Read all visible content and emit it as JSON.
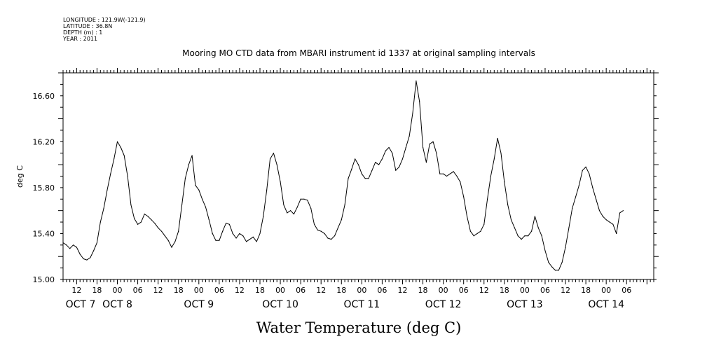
{
  "header": {
    "longitude": "LONGITUDE : 121.9W(-121.9)",
    "latitude": "LATITUDE : 36.8N",
    "depth": "DEPTH (m) : 1",
    "year": "YEAR : 2011",
    "title": "Mooring MO CTD data from MBARI instrument id 1337 at original sampling intervals"
  },
  "chart_data": {
    "type": "line",
    "title": "Mooring MO CTD data from MBARI instrument id 1337 at original sampling intervals",
    "xlabel": "Water Temperature (deg C)",
    "ylabel": "deg C",
    "ylim": [
      15.0,
      16.8
    ],
    "xlim": [
      "2011-10-07T08:00",
      "2011-10-14T14:00"
    ],
    "y_ticks": [
      "15.00",
      "15.40",
      "15.80",
      "16.20",
      "16.60"
    ],
    "x_hour_ticks": [
      {
        "t": "2011-10-07T12:00",
        "label": "12"
      },
      {
        "t": "2011-10-07T18:00",
        "label": "18"
      },
      {
        "t": "2011-10-08T00:00",
        "label": "00"
      },
      {
        "t": "2011-10-08T06:00",
        "label": "06"
      },
      {
        "t": "2011-10-08T12:00",
        "label": "12"
      },
      {
        "t": "2011-10-08T18:00",
        "label": "18"
      },
      {
        "t": "2011-10-09T00:00",
        "label": "00"
      },
      {
        "t": "2011-10-09T06:00",
        "label": "06"
      },
      {
        "t": "2011-10-09T12:00",
        "label": "12"
      },
      {
        "t": "2011-10-09T18:00",
        "label": "18"
      },
      {
        "t": "2011-10-10T00:00",
        "label": "00"
      },
      {
        "t": "2011-10-10T06:00",
        "label": "06"
      },
      {
        "t": "2011-10-10T12:00",
        "label": "12"
      },
      {
        "t": "2011-10-10T18:00",
        "label": "18"
      },
      {
        "t": "2011-10-11T00:00",
        "label": "00"
      },
      {
        "t": "2011-10-11T06:00",
        "label": "06"
      },
      {
        "t": "2011-10-11T12:00",
        "label": "12"
      },
      {
        "t": "2011-10-11T18:00",
        "label": "18"
      },
      {
        "t": "2011-10-12T00:00",
        "label": "00"
      },
      {
        "t": "2011-10-12T06:00",
        "label": "06"
      },
      {
        "t": "2011-10-12T12:00",
        "label": "12"
      },
      {
        "t": "2011-10-12T18:00",
        "label": "18"
      },
      {
        "t": "2011-10-13T00:00",
        "label": "00"
      },
      {
        "t": "2011-10-13T06:00",
        "label": "06"
      },
      {
        "t": "2011-10-13T12:00",
        "label": "12"
      },
      {
        "t": "2011-10-13T18:00",
        "label": "18"
      },
      {
        "t": "2011-10-14T00:00",
        "label": "00"
      },
      {
        "t": "2011-10-14T06:00",
        "label": "06"
      }
    ],
    "x_day_labels": [
      {
        "t": "2011-10-07T00:00",
        "label": "OCT  7"
      },
      {
        "t": "2011-10-08T00:00",
        "label": "OCT  8"
      },
      {
        "t": "2011-10-09T00:00",
        "label": "OCT  9"
      },
      {
        "t": "2011-10-10T00:00",
        "label": "OCT 10"
      },
      {
        "t": "2011-10-11T00:00",
        "label": "OCT 11"
      },
      {
        "t": "2011-10-12T00:00",
        "label": "OCT 12"
      },
      {
        "t": "2011-10-13T00:00",
        "label": "OCT 13"
      },
      {
        "t": "2011-10-14T00:00",
        "label": "OCT 14"
      }
    ],
    "grid": false,
    "series": [
      {
        "color": "#000000",
        "points": [
          [
            "2011-10-07T08:00",
            15.32
          ],
          [
            "2011-10-07T09:00",
            15.3
          ],
          [
            "2011-10-07T10:00",
            15.27
          ],
          [
            "2011-10-07T11:00",
            15.3
          ],
          [
            "2011-10-07T12:00",
            15.28
          ],
          [
            "2011-10-07T13:00",
            15.22
          ],
          [
            "2011-10-07T14:00",
            15.18
          ],
          [
            "2011-10-07T15:00",
            15.17
          ],
          [
            "2011-10-07T16:00",
            15.19
          ],
          [
            "2011-10-07T17:00",
            15.25
          ],
          [
            "2011-10-07T18:00",
            15.32
          ],
          [
            "2011-10-07T19:00",
            15.5
          ],
          [
            "2011-10-07T20:00",
            15.62
          ],
          [
            "2011-10-07T21:00",
            15.78
          ],
          [
            "2011-10-07T22:00",
            15.92
          ],
          [
            "2011-10-07T23:00",
            16.05
          ],
          [
            "2011-10-08T00:00",
            16.2
          ],
          [
            "2011-10-08T01:00",
            16.15
          ],
          [
            "2011-10-08T02:00",
            16.08
          ],
          [
            "2011-10-08T03:00",
            15.9
          ],
          [
            "2011-10-08T04:00",
            15.65
          ],
          [
            "2011-10-08T05:00",
            15.53
          ],
          [
            "2011-10-08T06:00",
            15.48
          ],
          [
            "2011-10-08T07:00",
            15.5
          ],
          [
            "2011-10-08T08:00",
            15.57
          ],
          [
            "2011-10-08T09:00",
            15.55
          ],
          [
            "2011-10-08T10:00",
            15.52
          ],
          [
            "2011-10-08T11:00",
            15.49
          ],
          [
            "2011-10-08T12:00",
            15.45
          ],
          [
            "2011-10-08T13:00",
            15.42
          ],
          [
            "2011-10-08T14:00",
            15.38
          ],
          [
            "2011-10-08T15:00",
            15.34
          ],
          [
            "2011-10-08T16:00",
            15.28
          ],
          [
            "2011-10-08T17:00",
            15.33
          ],
          [
            "2011-10-08T18:00",
            15.42
          ],
          [
            "2011-10-08T19:00",
            15.65
          ],
          [
            "2011-10-08T20:00",
            15.88
          ],
          [
            "2011-10-08T21:00",
            16.0
          ],
          [
            "2011-10-08T22:00",
            16.08
          ],
          [
            "2011-10-08T23:00",
            15.82
          ],
          [
            "2011-10-09T00:00",
            15.78
          ],
          [
            "2011-10-09T01:00",
            15.7
          ],
          [
            "2011-10-09T02:00",
            15.63
          ],
          [
            "2011-10-09T03:00",
            15.52
          ],
          [
            "2011-10-09T04:00",
            15.4
          ],
          [
            "2011-10-09T05:00",
            15.34
          ],
          [
            "2011-10-09T06:00",
            15.34
          ],
          [
            "2011-10-09T07:00",
            15.42
          ],
          [
            "2011-10-09T08:00",
            15.49
          ],
          [
            "2011-10-09T09:00",
            15.48
          ],
          [
            "2011-10-09T10:00",
            15.4
          ],
          [
            "2011-10-09T11:00",
            15.36
          ],
          [
            "2011-10-09T12:00",
            15.4
          ],
          [
            "2011-10-09T13:00",
            15.38
          ],
          [
            "2011-10-09T14:00",
            15.33
          ],
          [
            "2011-10-09T15:00",
            15.35
          ],
          [
            "2011-10-09T16:00",
            15.37
          ],
          [
            "2011-10-09T17:00",
            15.33
          ],
          [
            "2011-10-09T18:00",
            15.4
          ],
          [
            "2011-10-09T19:00",
            15.55
          ],
          [
            "2011-10-09T20:00",
            15.78
          ],
          [
            "2011-10-09T21:00",
            16.05
          ],
          [
            "2011-10-09T22:00",
            16.1
          ],
          [
            "2011-10-09T23:00",
            16.0
          ],
          [
            "2011-10-10T00:00",
            15.85
          ],
          [
            "2011-10-10T01:00",
            15.65
          ],
          [
            "2011-10-10T02:00",
            15.58
          ],
          [
            "2011-10-10T03:00",
            15.6
          ],
          [
            "2011-10-10T04:00",
            15.57
          ],
          [
            "2011-10-10T05:00",
            15.63
          ],
          [
            "2011-10-10T06:00",
            15.7
          ],
          [
            "2011-10-10T07:00",
            15.7
          ],
          [
            "2011-10-10T08:00",
            15.69
          ],
          [
            "2011-10-10T09:00",
            15.62
          ],
          [
            "2011-10-10T10:00",
            15.48
          ],
          [
            "2011-10-10T11:00",
            15.43
          ],
          [
            "2011-10-10T12:00",
            15.42
          ],
          [
            "2011-10-10T13:00",
            15.4
          ],
          [
            "2011-10-10T14:00",
            15.36
          ],
          [
            "2011-10-10T15:00",
            15.35
          ],
          [
            "2011-10-10T16:00",
            15.38
          ],
          [
            "2011-10-10T17:00",
            15.45
          ],
          [
            "2011-10-10T18:00",
            15.52
          ],
          [
            "2011-10-10T19:00",
            15.65
          ],
          [
            "2011-10-10T20:00",
            15.88
          ],
          [
            "2011-10-10T21:00",
            15.96
          ],
          [
            "2011-10-10T22:00",
            16.05
          ],
          [
            "2011-10-10T23:00",
            16.0
          ],
          [
            "2011-10-11T00:00",
            15.92
          ],
          [
            "2011-10-11T01:00",
            15.88
          ],
          [
            "2011-10-11T02:00",
            15.88
          ],
          [
            "2011-10-11T03:00",
            15.95
          ],
          [
            "2011-10-11T04:00",
            16.02
          ],
          [
            "2011-10-11T05:00",
            16.0
          ],
          [
            "2011-10-11T06:00",
            16.05
          ],
          [
            "2011-10-11T07:00",
            16.12
          ],
          [
            "2011-10-11T08:00",
            16.15
          ],
          [
            "2011-10-11T09:00",
            16.1
          ],
          [
            "2011-10-11T10:00",
            15.95
          ],
          [
            "2011-10-11T11:00",
            15.98
          ],
          [
            "2011-10-11T12:00",
            16.05
          ],
          [
            "2011-10-11T13:00",
            16.15
          ],
          [
            "2011-10-11T14:00",
            16.25
          ],
          [
            "2011-10-11T15:00",
            16.45
          ],
          [
            "2011-10-11T16:00",
            16.73
          ],
          [
            "2011-10-11T17:00",
            16.55
          ],
          [
            "2011-10-11T18:00",
            16.15
          ],
          [
            "2011-10-11T19:00",
            16.02
          ],
          [
            "2011-10-11T20:00",
            16.18
          ],
          [
            "2011-10-11T21:00",
            16.2
          ],
          [
            "2011-10-11T22:00",
            16.1
          ],
          [
            "2011-10-11T23:00",
            15.92
          ],
          [
            "2011-10-12T00:00",
            15.92
          ],
          [
            "2011-10-12T01:00",
            15.9
          ],
          [
            "2011-10-12T02:00",
            15.92
          ],
          [
            "2011-10-12T03:00",
            15.94
          ],
          [
            "2011-10-12T04:00",
            15.9
          ],
          [
            "2011-10-12T05:00",
            15.85
          ],
          [
            "2011-10-12T06:00",
            15.72
          ],
          [
            "2011-10-12T07:00",
            15.55
          ],
          [
            "2011-10-12T08:00",
            15.42
          ],
          [
            "2011-10-12T09:00",
            15.38
          ],
          [
            "2011-10-12T10:00",
            15.4
          ],
          [
            "2011-10-12T11:00",
            15.42
          ],
          [
            "2011-10-12T12:00",
            15.48
          ],
          [
            "2011-10-12T13:00",
            15.7
          ],
          [
            "2011-10-12T14:00",
            15.9
          ],
          [
            "2011-10-12T15:00",
            16.05
          ],
          [
            "2011-10-12T16:00",
            16.23
          ],
          [
            "2011-10-12T17:00",
            16.1
          ],
          [
            "2011-10-12T18:00",
            15.85
          ],
          [
            "2011-10-12T19:00",
            15.65
          ],
          [
            "2011-10-12T20:00",
            15.52
          ],
          [
            "2011-10-12T21:00",
            15.45
          ],
          [
            "2011-10-12T22:00",
            15.38
          ],
          [
            "2011-10-12T23:00",
            15.35
          ],
          [
            "2011-10-13T00:00",
            15.38
          ],
          [
            "2011-10-13T01:00",
            15.38
          ],
          [
            "2011-10-13T02:00",
            15.42
          ],
          [
            "2011-10-13T03:00",
            15.55
          ],
          [
            "2011-10-13T04:00",
            15.45
          ],
          [
            "2011-10-13T05:00",
            15.38
          ],
          [
            "2011-10-13T06:00",
            15.25
          ],
          [
            "2011-10-13T07:00",
            15.15
          ],
          [
            "2011-10-13T08:00",
            15.11
          ],
          [
            "2011-10-13T09:00",
            15.08
          ],
          [
            "2011-10-13T10:00",
            15.08
          ],
          [
            "2011-10-13T11:00",
            15.15
          ],
          [
            "2011-10-13T12:00",
            15.28
          ],
          [
            "2011-10-13T13:00",
            15.45
          ],
          [
            "2011-10-13T14:00",
            15.62
          ],
          [
            "2011-10-13T15:00",
            15.72
          ],
          [
            "2011-10-13T16:00",
            15.82
          ],
          [
            "2011-10-13T17:00",
            15.95
          ],
          [
            "2011-10-13T18:00",
            15.98
          ],
          [
            "2011-10-13T19:00",
            15.92
          ],
          [
            "2011-10-13T20:00",
            15.8
          ],
          [
            "2011-10-13T21:00",
            15.7
          ],
          [
            "2011-10-13T22:00",
            15.6
          ],
          [
            "2011-10-13T23:00",
            15.55
          ],
          [
            "2011-10-14T00:00",
            15.52
          ],
          [
            "2011-10-14T01:00",
            15.5
          ],
          [
            "2011-10-14T02:00",
            15.48
          ],
          [
            "2011-10-14T03:00",
            15.4
          ],
          [
            "2011-10-14T04:00",
            15.58
          ],
          [
            "2011-10-14T05:00",
            15.6
          ]
        ]
      }
    ]
  }
}
